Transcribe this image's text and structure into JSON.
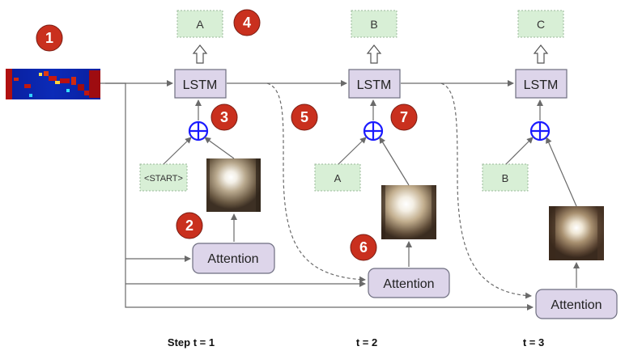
{
  "diagram": {
    "steps": [
      {
        "output": "A",
        "cell": "LSTM",
        "input": "<START>",
        "attention": "Attention",
        "time": "Step  t = 1"
      },
      {
        "output": "B",
        "cell": "LSTM",
        "input": "A",
        "attention": "Attention",
        "time": "t = 2"
      },
      {
        "output": "C",
        "cell": "LSTM",
        "input": "B",
        "attention": "Attention",
        "time": "t = 3"
      }
    ],
    "badges": [
      "1",
      "2",
      "3",
      "4",
      "5",
      "6",
      "7"
    ],
    "colors": {
      "badge": "#c9301e",
      "box_fill": "#ddd5ea",
      "token_fill": "#d8efd6",
      "plus": "#1a1aff"
    },
    "icons": {
      "feature_map": "feature-map-heatmap",
      "attention_image": "attention-glimpse-image",
      "sum": "plus-circle-icon",
      "output_arrow": "hollow-up-arrow-icon"
    }
  }
}
